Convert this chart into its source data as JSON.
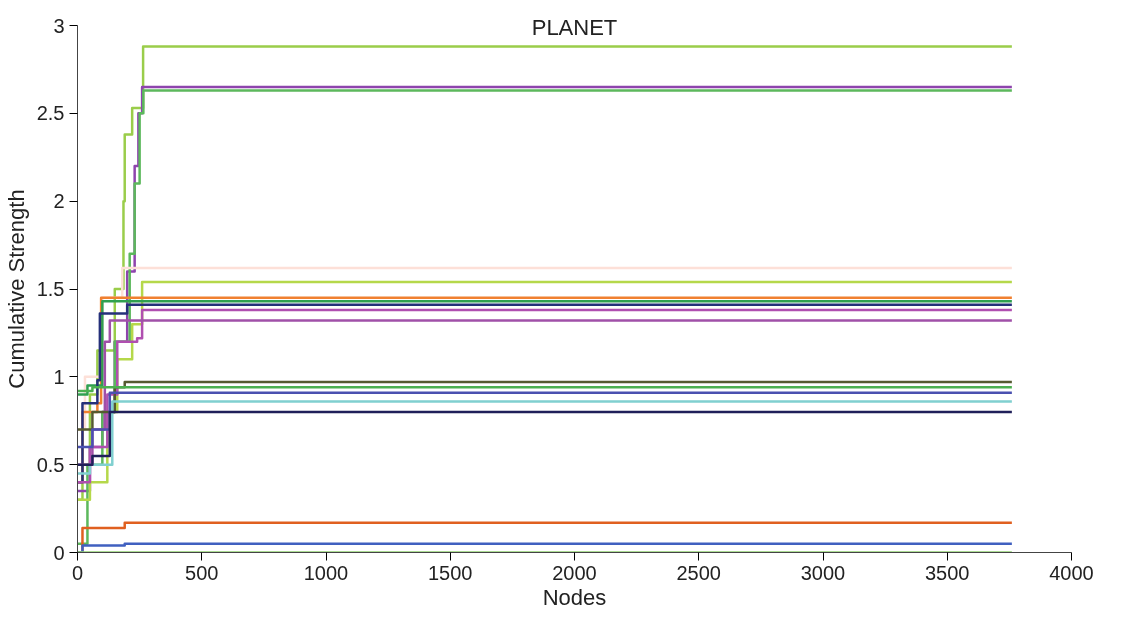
{
  "chart_data": {
    "type": "step",
    "title": "PLANET",
    "xlabel": "Nodes",
    "ylabel": "Cumulative Strength",
    "xlim": [
      0,
      4000
    ],
    "ylim": [
      0,
      3
    ],
    "xticks": [
      0,
      500,
      1000,
      1500,
      2000,
      2500,
      3000,
      3500,
      4000
    ],
    "yticks": [
      0,
      0.5,
      1,
      1.5,
      2,
      2.5,
      3
    ],
    "line_style": "solid",
    "series": [
      {
        "color": "#9acd4a",
        "x": [
          0,
          20,
          50,
          80,
          150,
          185,
          190,
          220,
          264,
          3760
        ],
        "values": [
          0.3,
          0.5,
          0.9,
          1.15,
          1.5,
          2.0,
          2.38,
          2.53,
          2.88,
          2.88
        ]
      },
      {
        "color": "#8e44ad",
        "x": [
          0,
          50,
          100,
          150,
          200,
          230,
          245,
          260,
          3760
        ],
        "values": [
          0.35,
          0.6,
          0.8,
          1.2,
          1.6,
          2.2,
          2.5,
          2.65,
          2.65
        ]
      },
      {
        "color": "#5cb85c",
        "x": [
          0,
          40,
          100,
          150,
          210,
          230,
          250,
          265,
          3760
        ],
        "values": [
          0.05,
          0.5,
          0.8,
          1.2,
          1.7,
          2.1,
          2.5,
          2.63,
          2.63
        ]
      },
      {
        "color": "#fde0d8",
        "x": [
          0,
          30,
          100,
          180,
          3760
        ],
        "values": [
          0.7,
          1.0,
          1.45,
          1.62,
          1.62
        ]
      },
      {
        "color": "#b5d84a",
        "x": [
          0,
          50,
          120,
          160,
          220,
          260,
          3760
        ],
        "values": [
          0.3,
          0.4,
          0.8,
          1.1,
          1.3,
          1.54,
          1.54
        ]
      },
      {
        "color": "#f08030",
        "x": [
          0,
          20,
          80,
          95,
          3760
        ],
        "values": [
          0.4,
          0.8,
          0.85,
          1.45,
          1.45
        ]
      },
      {
        "color": "#30a050",
        "x": [
          0,
          40,
          100,
          3760
        ],
        "values": [
          0.9,
          0.95,
          1.43,
          1.43
        ]
      },
      {
        "color": "#25307a",
        "x": [
          0,
          20,
          80,
          90,
          200,
          3760
        ],
        "values": [
          0.4,
          0.85,
          0.98,
          1.36,
          1.41,
          1.41
        ]
      },
      {
        "color": "#b04fb0",
        "x": [
          0,
          50,
          120,
          160,
          240,
          260,
          3760
        ],
        "values": [
          0.4,
          0.6,
          0.9,
          1.2,
          1.22,
          1.38,
          1.38
        ]
      },
      {
        "color": "#a050a8",
        "x": [
          0,
          60,
          110,
          130,
          3760
        ],
        "values": [
          0.5,
          0.7,
          1.2,
          1.32,
          1.32
        ]
      },
      {
        "color": "#555a30",
        "x": [
          0,
          60,
          150,
          190,
          3760
        ],
        "values": [
          0.7,
          0.8,
          0.94,
          0.97,
          0.97
        ]
      },
      {
        "color": "#4cb050",
        "x": [
          0,
          60,
          3760
        ],
        "values": [
          0.92,
          0.94,
          0.94
        ]
      },
      {
        "color": "#4a50b0",
        "x": [
          0,
          60,
          130,
          3760
        ],
        "values": [
          0.6,
          0.7,
          0.91,
          0.91
        ]
      },
      {
        "color": "#80d0d0",
        "x": [
          0,
          50,
          140,
          3760
        ],
        "values": [
          0.45,
          0.5,
          0.86,
          0.86
        ]
      },
      {
        "color": "#20205a",
        "x": [
          0,
          60,
          130,
          3760
        ],
        "values": [
          0.5,
          0.55,
          0.8,
          0.8
        ]
      },
      {
        "color": "#e06020",
        "x": [
          0,
          20,
          190,
          3760
        ],
        "values": [
          0,
          0.14,
          0.17,
          0.17
        ]
      },
      {
        "color": "#4060c0",
        "x": [
          0,
          20,
          190,
          3760
        ],
        "values": [
          0,
          0.04,
          0.05,
          0.05
        ]
      },
      {
        "color": "#90d070",
        "x": [
          0,
          3760
        ],
        "values": [
          0,
          0
        ]
      }
    ]
  }
}
